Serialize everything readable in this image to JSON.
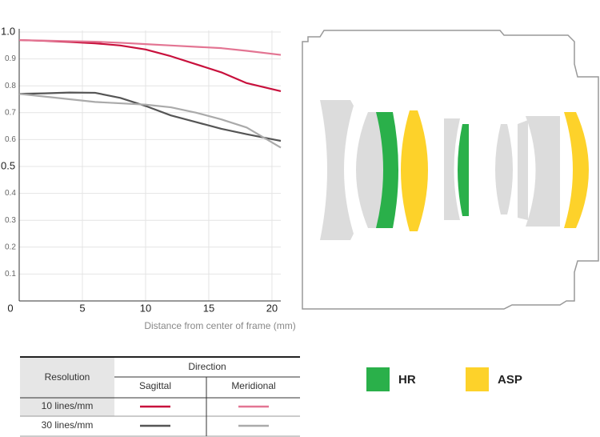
{
  "chart_data": {
    "type": "line",
    "x_label": "Distance from center of frame (mm)",
    "x": [
      0,
      2,
      4,
      6,
      8,
      10,
      12,
      14,
      16,
      18,
      20.7
    ],
    "xlim": [
      0,
      20.7
    ],
    "ylim": [
      0,
      1
    ],
    "xticks": [
      0,
      5,
      10,
      15,
      20
    ],
    "yticks": [
      0.1,
      0.2,
      0.3,
      0.4,
      0.5,
      0.6,
      0.7,
      0.8,
      0.9,
      {
        "value": 1,
        "label": "1.0"
      }
    ],
    "grid": true,
    "series": [
      {
        "color": "#c8103c",
        "values": [
          0.97,
          0.967,
          0.963,
          0.958,
          0.95,
          0.935,
          0.91,
          0.88,
          0.85,
          0.81,
          0.78
        ]
      },
      {
        "color": "#e37593",
        "values": [
          0.97,
          0.968,
          0.966,
          0.964,
          0.96,
          0.955,
          0.95,
          0.945,
          0.94,
          0.93,
          0.915
        ]
      },
      {
        "color": "#555555",
        "values": [
          0.77,
          0.772,
          0.775,
          0.774,
          0.755,
          0.725,
          0.69,
          0.665,
          0.64,
          0.62,
          0.595
        ]
      },
      {
        "color": "#aaaaaa",
        "values": [
          0.77,
          0.76,
          0.75,
          0.74,
          0.735,
          0.73,
          0.72,
          0.7,
          0.675,
          0.645,
          0.57
        ]
      }
    ],
    "legend": {
      "row_header": "Resolution",
      "column_header": "Direction",
      "columns": [
        "Sagittal",
        "Meridional"
      ],
      "rows": [
        "10 lines/mm",
        "30 lines/mm"
      ]
    }
  },
  "lens_legend": [
    {
      "label": "HR",
      "color": "#2ab04a"
    },
    {
      "label": "ASP",
      "color": "#fdd22a"
    }
  ]
}
